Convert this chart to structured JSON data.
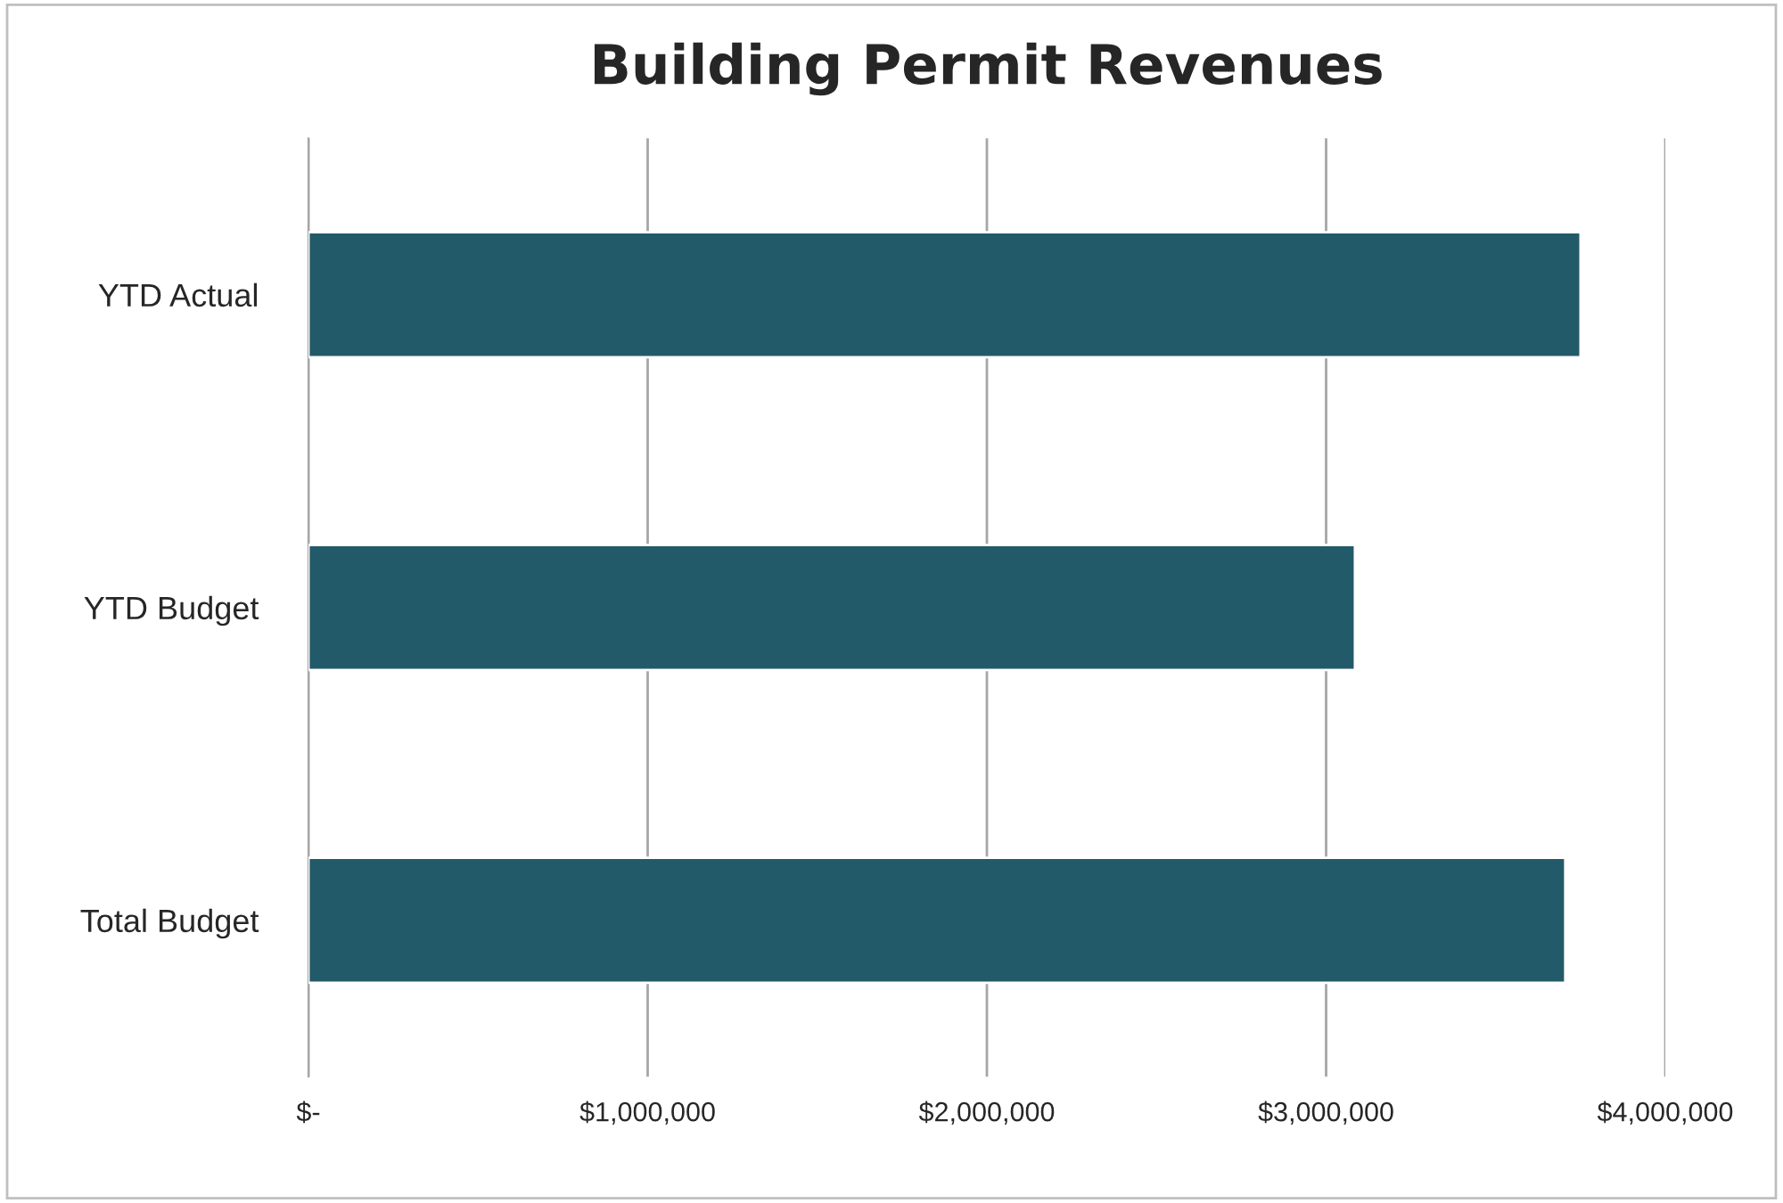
{
  "chart_data": {
    "type": "bar",
    "orientation": "horizontal",
    "title": "Building Permit Revenues",
    "categories": [
      "YTD Actual",
      "YTD Budget",
      "Total Budget"
    ],
    "values": [
      3750000,
      3085000,
      3705000
    ],
    "color": "#235a69",
    "xlim": [
      0,
      4000000
    ],
    "xticks": [
      {
        "value": 0,
        "label": "$-"
      },
      {
        "value": 1000000,
        "label": "$1,000,000"
      },
      {
        "value": 2000000,
        "label": "$2,000,000"
      },
      {
        "value": 3000000,
        "label": "$3,000,000"
      },
      {
        "value": 4000000,
        "label": "$4,000,000"
      }
    ],
    "grid": "x",
    "legend": false
  }
}
